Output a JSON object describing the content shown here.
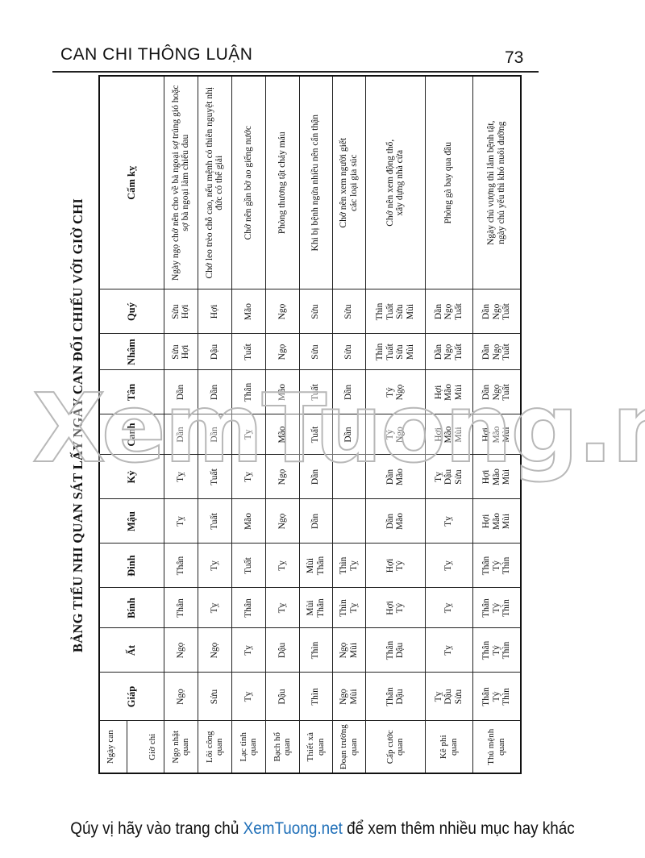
{
  "header": {
    "running_title": "CAN CHI THÔNG LUẬN",
    "page_number": "73"
  },
  "title": "BẢNG TIỂU NHI QUAN SÁT LẤY NGÀY CAN ĐỐI CHIẾU VỚI GIỜ CHI",
  "table": {
    "corner_top": "Ngày can",
    "corner_bottom": "Giờ chi",
    "columns": [
      "Giáp",
      "Ất",
      "Bính",
      "Đinh",
      "Mậu",
      "Kỷ",
      "Canh",
      "Tân",
      "Nhâm",
      "Quý",
      "Cấm kỵ"
    ],
    "rows": [
      {
        "name": "Ngọ nhật\nquan",
        "cells": [
          "Ngọ",
          "Ngọ",
          "Thân",
          "Thân",
          "Tỵ",
          "Tỵ",
          "Dần",
          "Dần",
          "Sửu\nHợi",
          "Sửu\nHợi"
        ],
        "cam_ky": "Ngày ngọ chớ nên cho về bà ngoại sợ trúng gió hoặc sợ bà ngoại làm chiếu dau"
      },
      {
        "name": "Lôi công\nquan",
        "cells": [
          "Sửu",
          "Ngọ",
          "Tỵ",
          "Tỵ",
          "Tuất",
          "Tuất",
          "Dần",
          "Dần",
          "Dậu",
          "Hợi"
        ],
        "cam_ky": "Chớ leo trèo chỗ cao, nếu mệnh có thiên nguyệt nhị đức có thể giải"
      },
      {
        "name": "Lạc tỉnh\nquan",
        "cells": [
          "Tỵ",
          "Tỵ",
          "Thân",
          "Tuất",
          "Mão",
          "Tỵ",
          "Tỵ",
          "Thân",
          "Tuất",
          "Mão"
        ],
        "cam_ky": "Chớ nên gần bờ ao giếng nước"
      },
      {
        "name": "Bạch hổ\nquan",
        "cells": [
          "Dậu",
          "Dậu",
          "Tỵ",
          "Tỵ",
          "Ngọ",
          "Ngọ",
          "Mão",
          "Mão",
          "Ngọ",
          "Ngọ"
        ],
        "cam_ky": "Phòng thương tật chảy máu"
      },
      {
        "name": "Thiết xà\nquan",
        "cells": [
          "Thìn",
          "Thìn",
          "Mùi\nThân",
          "Mùi\nThân",
          "Dần",
          "Dần",
          "Tuất",
          "Tuất",
          "Sửu",
          "Sửu"
        ],
        "cam_ky": "Khi bị bệnh ngứa nhiều nên cẩn thận"
      },
      {
        "name": "Đoạn trường\nquan",
        "cells": [
          "Ngọ\nMùi",
          "Ngọ\nMùi",
          "Thìn\nTỵ",
          "Thìn\nTỵ",
          "",
          "",
          "Dần",
          "Dần",
          "Sửu",
          "Sửu"
        ],
        "cam_ky": "Chớ nên xem người giết\ncác loại gia súc"
      },
      {
        "name": "Cấp cước\nquan",
        "cells": [
          "Thân\nDậu",
          "Thân\nDậu",
          "Hợi\nTý",
          "Hợi\nTý",
          "Dần\nMão",
          "Dần\nMão",
          "Tý\nNgọ",
          "Tý\nNgọ",
          "Thìn\nTuất\nSửu\nMùi",
          "Thìn\nTuất\nSửu\nMùi"
        ],
        "cam_ky": "Chớ nên xem động thổ,\nxây dựng nhà cửa"
      },
      {
        "name": "Kê phi\nquan",
        "cells": [
          "Tỵ\nDậu\nSửu",
          "Tỵ",
          "Tỵ",
          "Tỵ",
          "Tỵ",
          "Tỵ\nDậu\nSửu",
          "Hợi\nMão\nMùi",
          "Hợi\nMão\nMùi",
          "Dần\nNgọ\nTuất",
          "Dần\nNgọ\nTuất"
        ],
        "cam_ky": "Phòng gà bay qua đầu"
      },
      {
        "name": "Thủ mệnh\nquan",
        "cells": [
          "Thân\nTý\nThìn",
          "Thân\nTý\nThìn",
          "Thân\nTý\nThìn",
          "Thân\nTý\nThìn",
          "Hợi\nMão\nMùi",
          "Hợi\nMão\nMùi",
          "Hợi\nMão\nMùi",
          "Dần\nNgọ\nTuất",
          "Dần\nNgọ\nTuất",
          "Dần\nNgọ\nTuất"
        ],
        "cam_ky": "Ngày chủ vượng thì lắm bệnh tật,\nngày chủ yếu thì khó nuôi dưỡng"
      }
    ]
  },
  "watermark": "XemTuong.net",
  "footer": {
    "before": "Qúy vị hãy vào trang chủ ",
    "link": "XemTuong.net",
    "after": " để xem thêm nhiều mục hay khác",
    "link_color": "#1f6fb8"
  }
}
